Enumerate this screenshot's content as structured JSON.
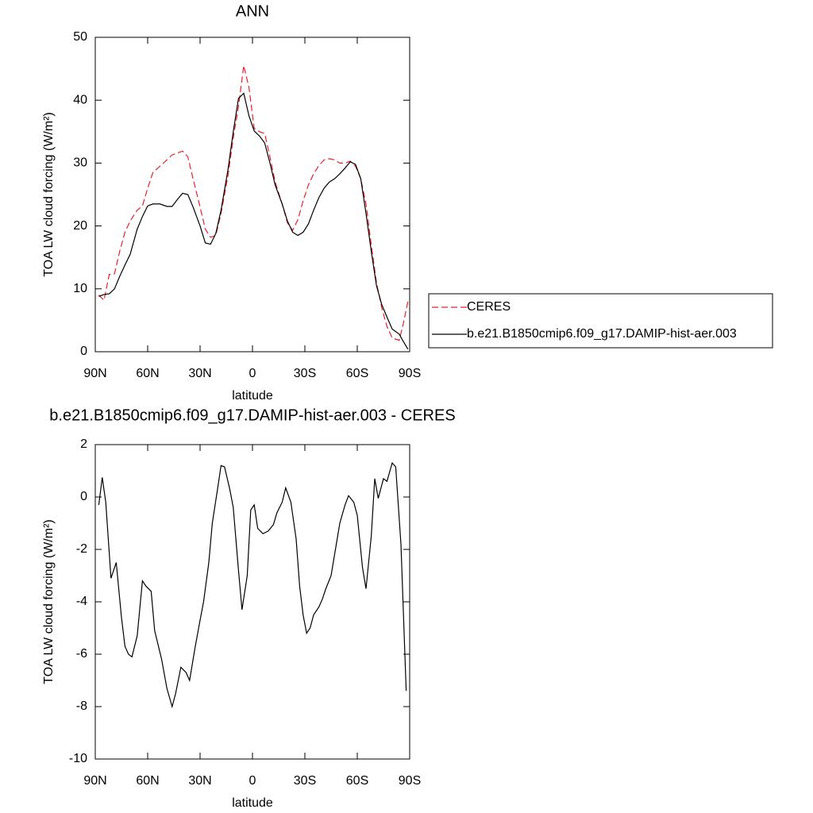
{
  "chart_data": [
    {
      "type": "line",
      "title": "ANN",
      "xlabel": "latitude",
      "ylabel": "TOA LW cloud forcing (W/m²)",
      "x": [
        88,
        85,
        82,
        79,
        76,
        73,
        70,
        66,
        63,
        60,
        57,
        53,
        49,
        46,
        43,
        40,
        37,
        34,
        30,
        27,
        24,
        21,
        18,
        14,
        11,
        8,
        5,
        2,
        -1,
        -4,
        -7,
        -10,
        -13,
        -17,
        -20,
        -23,
        -26,
        -29,
        -32,
        -35,
        -38,
        -41,
        -44,
        -47,
        -50,
        -53,
        -56,
        -59,
        -62,
        -65,
        -68,
        -71,
        -74,
        -77,
        -80,
        -84,
        -86,
        -89
      ],
      "series": [
        {
          "name": "CERES",
          "color": "#e8202a",
          "dashed": true,
          "values": [
            9,
            8.2,
            12.3,
            12.4,
            16,
            19,
            20.8,
            22.5,
            23.2,
            26,
            28.5,
            29.5,
            30.5,
            31.3,
            31.6,
            31.9,
            31,
            27.5,
            23,
            19.5,
            18.2,
            18.5,
            22,
            28,
            34,
            39,
            45.5,
            42,
            35.5,
            35,
            34.7,
            31,
            27,
            23.5,
            20.5,
            19.3,
            21,
            24,
            26.5,
            28.3,
            29.6,
            30.5,
            30.7,
            30.5,
            30,
            30,
            30.3,
            29.5,
            27.5,
            23.5,
            17,
            11,
            7,
            4,
            2.2,
            1.8,
            4,
            8
          ]
        },
        {
          "name": "b.e21.B1850cmip6.f09_g17.DAMIP-hist-aer.003",
          "color": "#000000",
          "dashed": false,
          "values": [
            8.8,
            9.1,
            9.2,
            10,
            12,
            13.8,
            15.5,
            19.5,
            21.5,
            23.2,
            23.5,
            23.5,
            23.1,
            23.1,
            24.2,
            25.2,
            25,
            23,
            20,
            17.3,
            17.1,
            18.8,
            22.5,
            29,
            35,
            40.3,
            41.1,
            37.5,
            35.1,
            34.3,
            33.2,
            30,
            26.5,
            23.5,
            20.8,
            19,
            18.5,
            19,
            20.3,
            22.5,
            24.5,
            26,
            27,
            27.5,
            28.3,
            29.2,
            30.2,
            29.8,
            27.5,
            22,
            16,
            10.5,
            7.5,
            5.5,
            3.6,
            2.8,
            1.8,
            0.4
          ]
        }
      ],
      "xlim": [
        90,
        -90
      ],
      "xticks": [
        {
          "value": 90,
          "label": "90N"
        },
        {
          "value": 60,
          "label": "60N"
        },
        {
          "value": 30,
          "label": "30N"
        },
        0,
        {
          "value": -30,
          "label": "30S"
        },
        {
          "value": -60,
          "label": "60S"
        },
        {
          "value": -90,
          "label": "90S"
        }
      ],
      "ylim": [
        0,
        50
      ],
      "yticks": [
        0,
        10,
        20,
        30,
        40,
        50
      ],
      "legend": "right"
    },
    {
      "type": "line",
      "title": "b.e21.B1850cmip6.f09_g17.DAMIP-hist-aer.003 - CERES",
      "xlabel": "latitude",
      "ylabel": "TOA LW cloud forcing (W/m²)",
      "x": [
        88,
        86,
        84,
        81,
        78,
        75,
        73,
        71,
        69,
        66,
        63,
        61,
        58,
        56,
        52,
        49,
        46,
        44,
        41,
        38,
        36,
        33,
        30,
        28,
        25,
        23,
        20,
        18,
        16,
        13,
        11,
        8,
        6,
        3,
        1,
        -1,
        -3,
        -6,
        -9,
        -12,
        -14,
        -17,
        -19,
        -22,
        -25,
        -27,
        -29,
        -31,
        -33,
        -35,
        -38,
        -40,
        -42,
        -45,
        -47,
        -50,
        -53,
        -55,
        -58,
        -60,
        -63,
        -65,
        -68,
        -70,
        -72,
        -75,
        -77,
        -80,
        -82,
        -85,
        -88
      ],
      "series": [
        {
          "color": "#000000",
          "dashed": false,
          "values": [
            -0.3,
            0.75,
            -0.2,
            -3.1,
            -2.5,
            -4.6,
            -5.7,
            -6.0,
            -6.1,
            -5.3,
            -3.2,
            -3.4,
            -3.6,
            -5.1,
            -6.2,
            -7.3,
            -8.0,
            -7.5,
            -6.5,
            -6.7,
            -7.0,
            -5.8,
            -4.7,
            -4.0,
            -2.5,
            -1.0,
            0.3,
            1.2,
            1.15,
            0.3,
            -0.4,
            -2.8,
            -4.3,
            -3.0,
            -0.5,
            -0.3,
            -1.2,
            -1.4,
            -1.3,
            -1.05,
            -0.6,
            -0.2,
            0.35,
            -0.2,
            -1.6,
            -3.4,
            -4.5,
            -5.2,
            -5.0,
            -4.5,
            -4.2,
            -3.9,
            -3.5,
            -3.0,
            -2.2,
            -1.0,
            -0.3,
            0.05,
            -0.2,
            -0.7,
            -2.7,
            -3.5,
            -1.5,
            0.7,
            -0.05,
            0.7,
            0.6,
            1.3,
            1.15,
            -1.8,
            -7.4
          ]
        }
      ],
      "xlim": [
        90,
        -90
      ],
      "xticks": [
        {
          "value": 90,
          "label": "90N"
        },
        {
          "value": 60,
          "label": "60N"
        },
        {
          "value": 30,
          "label": "30N"
        },
        0,
        {
          "value": -30,
          "label": "30S"
        },
        {
          "value": -60,
          "label": "60S"
        },
        {
          "value": -90,
          "label": "90S"
        }
      ],
      "ylim": [
        -10,
        2
      ],
      "yticks": [
        2,
        0,
        -2,
        -4,
        -6,
        -8,
        -10
      ]
    }
  ]
}
